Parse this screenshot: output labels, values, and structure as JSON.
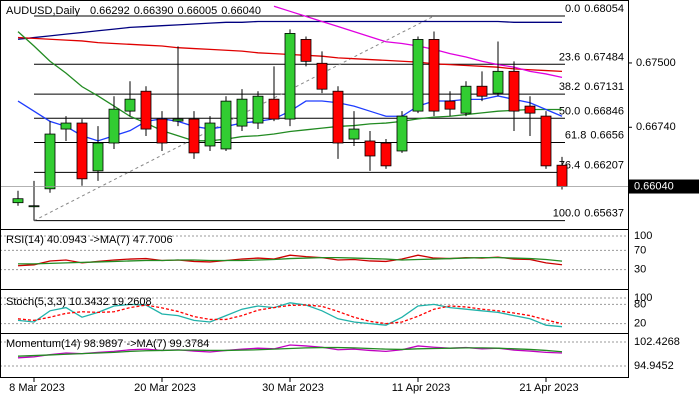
{
  "chart_data": [
    {
      "type": "candlestick",
      "title": "AUDUSD,Daily",
      "ohlc_labels": [
        "0.66292",
        "0.66390",
        "0.66005",
        "0.66040"
      ],
      "categories": [
        null,
        "8 Mar 2023",
        null,
        null,
        null,
        null,
        null,
        null,
        null,
        "20 Mar 2023",
        null,
        null,
        null,
        null,
        null,
        null,
        null,
        "30 Mar 2023",
        null,
        null,
        null,
        null,
        null,
        null,
        null,
        "11 Apr 2023",
        null,
        null,
        null,
        null,
        null,
        null,
        null,
        "21 Apr 2023",
        null
      ],
      "candles": [
        [
          0.65849,
          0.6599,
          0.65813,
          0.65896
        ],
        [
          0.65801,
          0.66107,
          0.65637,
          0.65813
        ],
        [
          0.66013,
          0.66813,
          0.65966,
          0.6666
        ],
        [
          0.66719,
          0.66872,
          0.66578,
          0.6679
        ],
        [
          0.6679,
          0.66837,
          0.66049,
          0.66131
        ],
        [
          0.66225,
          0.66754,
          0.66107,
          0.66554
        ],
        [
          0.66554,
          0.67107,
          0.66484,
          0.66954
        ],
        [
          0.66931,
          0.67284,
          0.66872,
          0.67072
        ],
        [
          0.67166,
          0.67225,
          0.66637,
          0.66719
        ],
        [
          0.66837,
          0.66931,
          0.6646,
          0.66554
        ],
        [
          0.66813,
          0.67696,
          0.66754,
          0.66837
        ],
        [
          0.66837,
          0.66931,
          0.66366,
          0.66437
        ],
        [
          0.66519,
          0.66872,
          0.6646,
          0.6679
        ],
        [
          0.66484,
          0.67107,
          0.6646,
          0.67049
        ],
        [
          0.66754,
          0.6719,
          0.66696,
          0.67072
        ],
        [
          0.6679,
          0.67166,
          0.66719,
          0.67107
        ],
        [
          0.67072,
          0.6746,
          0.66813,
          0.66837
        ],
        [
          0.66837,
          0.67896,
          0.66754,
          0.67849
        ],
        [
          0.67778,
          0.67813,
          0.6746,
          0.67519
        ],
        [
          0.67496,
          0.67637,
          0.67143,
          0.6719
        ],
        [
          0.67166,
          0.67225,
          0.66366,
          0.66554
        ],
        [
          0.66601,
          0.66931,
          0.66519,
          0.66719
        ],
        [
          0.66578,
          0.66696,
          0.66225,
          0.66401
        ],
        [
          0.66554,
          0.66601,
          0.66249,
          0.66284
        ],
        [
          0.6646,
          0.66931,
          0.66437,
          0.66872
        ],
        [
          0.66931,
          0.67813,
          0.66907,
          0.67778
        ],
        [
          0.67778,
          0.67872,
          0.66872,
          0.66931
        ],
        [
          0.67049,
          0.67166,
          0.66872,
          0.66954
        ],
        [
          0.66907,
          0.67284,
          0.66872,
          0.67225
        ],
        [
          0.67225,
          0.67401,
          0.67049,
          0.67107
        ],
        [
          0.67143,
          0.67754,
          0.67107,
          0.67401
        ],
        [
          0.67401,
          0.67519,
          0.66696,
          0.66931
        ],
        [
          0.6699,
          0.67107,
          0.66637,
          0.66907
        ],
        [
          0.66872,
          0.66931,
          0.66249,
          0.66284
        ],
        [
          0.66292,
          0.6639,
          0.66005,
          0.6604
        ]
      ],
      "up_color": "#32cd32",
      "down_color": "#ff0000",
      "series": [
        {
          "color": "#000080",
          "values": [
            0.6778,
            0.678,
            0.6782,
            0.6784,
            0.6786,
            0.6788,
            0.679,
            0.6792,
            0.6793,
            0.6794,
            0.6795,
            0.6796,
            0.6797,
            0.6798,
            0.6798,
            0.6799,
            0.6799,
            0.6799,
            0.6799,
            0.6799,
            0.6799,
            0.6799,
            0.6799,
            0.6799,
            0.6799,
            0.6799,
            0.6799,
            0.6799,
            0.6799,
            0.6799,
            0.6799,
            0.6798,
            0.6798,
            0.6798,
            0.6798
          ]
        },
        {
          "color": "#e00000",
          "values": [
            0.678,
            0.6779,
            0.6778,
            0.6777,
            0.6776,
            0.6774,
            0.6773,
            0.6772,
            0.6771,
            0.677,
            0.6768,
            0.6767,
            0.6766,
            0.6765,
            0.6764,
            0.6762,
            0.6761,
            0.676,
            0.6759,
            0.6758,
            0.6756,
            0.6755,
            0.6754,
            0.6753,
            0.6752,
            0.6751,
            0.6749,
            0.6748,
            0.6747,
            0.6746,
            0.6745,
            0.6743,
            0.6742,
            0.6741,
            0.674
          ]
        },
        {
          "color": "#e000e0",
          "values": [
            null,
            null,
            null,
            null,
            null,
            null,
            null,
            null,
            null,
            null,
            null,
            null,
            null,
            null,
            null,
            null,
            0.6817,
            0.6811,
            0.6805,
            0.6799,
            0.6793,
            0.6787,
            0.6781,
            0.6775,
            0.6773,
            0.677,
            0.6766,
            0.6761,
            0.6757,
            0.6752,
            0.6748,
            0.6745,
            0.674,
            0.6737,
            0.6733
          ]
        },
        {
          "color": "#228b22",
          "values": [
            0.6787,
            0.677,
            0.6752,
            0.6738,
            0.6722,
            0.6711,
            0.6699,
            0.6687,
            0.6679,
            0.667,
            0.6664,
            0.6658,
            0.6658,
            0.666,
            0.6663,
            0.6664,
            0.6666,
            0.6669,
            0.6671,
            0.6673,
            0.6675,
            0.6676,
            0.6678,
            0.6679,
            0.6681,
            0.6684,
            0.6686,
            0.6687,
            0.6689,
            0.6691,
            0.6693,
            0.6694,
            0.6695,
            0.6695,
            0.6695
          ]
        },
        {
          "color": "#1e3cff",
          "values": [
            0.6705,
            0.6693,
            0.6681,
            0.6675,
            0.6664,
            0.6658,
            0.6664,
            0.667,
            0.6681,
            0.6684,
            0.6681,
            0.6675,
            0.6672,
            0.6675,
            0.6679,
            0.6681,
            0.6684,
            0.6693,
            0.6705,
            0.6705,
            0.6703,
            0.6699,
            0.6693,
            0.6687,
            0.6687,
            0.6699,
            0.6705,
            0.6705,
            0.6707,
            0.6707,
            0.6711,
            0.6707,
            0.6703,
            0.6695,
            0.6687
          ]
        }
      ],
      "fib": [
        {
          "level": "0.0",
          "value": 0.68054
        },
        {
          "level": "23.6",
          "value": 0.67484
        },
        {
          "level": "38.2",
          "value": 0.67131
        },
        {
          "level": "50.0",
          "value": 0.66846
        },
        {
          "level": "61.8",
          "value": 0.6656
        },
        {
          "level": "76.4",
          "value": 0.66207
        },
        {
          "level": "100.0",
          "value": 0.65637
        }
      ],
      "ylim": [
        0.6555,
        0.6822
      ],
      "yticks": [
        {
          "value": 0.675,
          "label": "0.67500"
        },
        {
          "value": 0.6674,
          "label": "0.66740"
        }
      ],
      "current_price": {
        "value": 0.6604,
        "label": "0.66040"
      }
    },
    {
      "type": "line",
      "title": "RSI(14) 40.0943 ->MA(7) 47.7006",
      "series": [
        {
          "color": "#cc0000",
          "values": [
            38,
            40,
            48,
            50,
            44,
            47,
            50,
            52,
            53,
            49,
            50,
            47,
            46,
            49,
            52,
            54,
            52,
            60,
            57,
            55,
            50,
            51,
            48,
            47,
            52,
            60,
            54,
            53,
            55,
            54,
            56,
            52,
            51,
            44,
            40.0943
          ]
        },
        {
          "color": "#228b22",
          "values": [
            42,
            42,
            43,
            44,
            45,
            46,
            47,
            48,
            49,
            49,
            50,
            50,
            49,
            49,
            49,
            50,
            51,
            53,
            54,
            55,
            55,
            54,
            53,
            52,
            50,
            51,
            52,
            53,
            54,
            55,
            55,
            54,
            53,
            51,
            47.7006
          ]
        }
      ],
      "ylim": [
        0,
        100
      ],
      "yticks": [
        100,
        70,
        30
      ]
    },
    {
      "type": "line",
      "title": "Stoch(5,3,3) 10.3432 19.2608",
      "series": [
        {
          "color": "#20b2aa",
          "values": [
            30,
            25,
            60,
            70,
            40,
            55,
            75,
            80,
            78,
            50,
            45,
            30,
            25,
            45,
            65,
            75,
            70,
            85,
            78,
            60,
            35,
            25,
            20,
            15,
            40,
            75,
            80,
            70,
            65,
            60,
            55,
            45,
            35,
            15,
            10.3432
          ]
        },
        {
          "color": "#ff0000",
          "dashed": true,
          "values": [
            35,
            30,
            40,
            52,
            57,
            55,
            57,
            70,
            78,
            69,
            58,
            42,
            33,
            33,
            45,
            62,
            70,
            77,
            78,
            74,
            58,
            40,
            27,
            20,
            25,
            43,
            65,
            75,
            72,
            65,
            60,
            53,
            45,
            32,
            19.2608
          ]
        }
      ],
      "ylim": [
        0,
        100
      ],
      "yticks": [
        80,
        100,
        20
      ]
    },
    {
      "type": "line",
      "title": "Momentum(14) 98.9897 ->MA(7) 99.3784",
      "series": [
        {
          "color": "#c000c0",
          "values": [
            97.5,
            97.8,
            98.5,
            99,
            98.8,
            99.2,
            99.5,
            100,
            100.2,
            99.8,
            100,
            99.6,
            99.3,
            99.8,
            100.2,
            100.5,
            100.3,
            101.5,
            101.2,
            100.8,
            100,
            100.2,
            99.8,
            99.5,
            100,
            101.2,
            100.8,
            100.5,
            100.7,
            100.3,
            100.5,
            99.9,
            99.6,
            99.2,
            98.9897
          ]
        },
        {
          "color": "#228b22",
          "values": [
            98,
            98.2,
            98.4,
            98.6,
            98.8,
            99,
            99.2,
            99.5,
            99.7,
            99.8,
            99.9,
            99.9,
            99.8,
            99.8,
            99.9,
            100,
            100.2,
            100.4,
            100.6,
            100.7,
            100.7,
            100.6,
            100.4,
            100.2,
            100.1,
            100.3,
            100.4,
            100.5,
            100.6,
            100.6,
            100.5,
            100.3,
            100.1,
            99.8,
            99.3784
          ]
        }
      ],
      "ylim": [
        94.9452,
        102.4268
      ],
      "yticks": [
        102.4268,
        94.9452
      ]
    }
  ]
}
